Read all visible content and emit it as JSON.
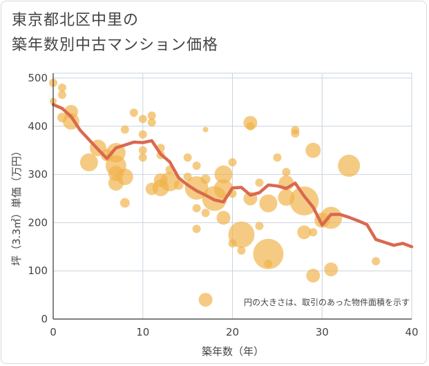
{
  "title_line1": "東京都北区中里の",
  "title_line2": "築年数別中古マンション価格",
  "chart_data": {
    "type": "scatter",
    "xlabel": "築年数（年）",
    "ylabel": "坪（3.3㎡）単価（万円）",
    "xlim": [
      0,
      40
    ],
    "ylim": [
      0,
      510
    ],
    "xticks": [
      0,
      10,
      20,
      30,
      40
    ],
    "yticks": [
      0,
      100,
      200,
      300,
      400,
      500
    ],
    "grid": true,
    "annotation": "円の大きさは、取引のあった物件面積を示す",
    "colors": {
      "bubble": "#f0b24a",
      "line": "#d9694f"
    },
    "series": [
      {
        "type": "bubble",
        "points": [
          {
            "x": 0,
            "y": 490,
            "r": 6
          },
          {
            "x": 0,
            "y": 452,
            "r": 5
          },
          {
            "x": 1,
            "y": 480,
            "r": 6
          },
          {
            "x": 1,
            "y": 465,
            "r": 6
          },
          {
            "x": 1,
            "y": 418,
            "r": 7
          },
          {
            "x": 2,
            "y": 430,
            "r": 10
          },
          {
            "x": 2,
            "y": 410,
            "r": 12
          },
          {
            "x": 4,
            "y": 325,
            "r": 13
          },
          {
            "x": 5,
            "y": 355,
            "r": 12
          },
          {
            "x": 6,
            "y": 340,
            "r": 9
          },
          {
            "x": 7,
            "y": 345,
            "r": 14
          },
          {
            "x": 7,
            "y": 318,
            "r": 15
          },
          {
            "x": 7,
            "y": 302,
            "r": 11
          },
          {
            "x": 7,
            "y": 282,
            "r": 11
          },
          {
            "x": 8,
            "y": 295,
            "r": 12
          },
          {
            "x": 8,
            "y": 393,
            "r": 6
          },
          {
            "x": 8,
            "y": 241,
            "r": 7
          },
          {
            "x": 9,
            "y": 428,
            "r": 6
          },
          {
            "x": 10,
            "y": 415,
            "r": 6
          },
          {
            "x": 10,
            "y": 383,
            "r": 6
          },
          {
            "x": 10,
            "y": 350,
            "r": 6
          },
          {
            "x": 10,
            "y": 335,
            "r": 6
          },
          {
            "x": 11,
            "y": 422,
            "r": 6
          },
          {
            "x": 11,
            "y": 408,
            "r": 6
          },
          {
            "x": 11,
            "y": 270,
            "r": 9
          },
          {
            "x": 12,
            "y": 355,
            "r": 6
          },
          {
            "x": 12,
            "y": 340,
            "r": 6
          },
          {
            "x": 12,
            "y": 288,
            "r": 10
          },
          {
            "x": 12,
            "y": 272,
            "r": 12
          },
          {
            "x": 13,
            "y": 310,
            "r": 6
          },
          {
            "x": 13,
            "y": 285,
            "r": 14
          },
          {
            "x": 14,
            "y": 278,
            "r": 7
          },
          {
            "x": 15,
            "y": 335,
            "r": 6
          },
          {
            "x": 15,
            "y": 295,
            "r": 6
          },
          {
            "x": 16,
            "y": 318,
            "r": 6
          },
          {
            "x": 16,
            "y": 272,
            "r": 17
          },
          {
            "x": 16,
            "y": 230,
            "r": 6
          },
          {
            "x": 17,
            "y": 393,
            "r": 4
          },
          {
            "x": 17,
            "y": 290,
            "r": 7
          },
          {
            "x": 17,
            "y": 220,
            "r": 6
          },
          {
            "x": 16,
            "y": 187,
            "r": 6
          },
          {
            "x": 18,
            "y": 250,
            "r": 18
          },
          {
            "x": 19,
            "y": 300,
            "r": 13
          },
          {
            "x": 19,
            "y": 270,
            "r": 14
          },
          {
            "x": 19,
            "y": 210,
            "r": 10
          },
          {
            "x": 20,
            "y": 325,
            "r": 6
          },
          {
            "x": 20,
            "y": 260,
            "r": 6
          },
          {
            "x": 20,
            "y": 157,
            "r": 6
          },
          {
            "x": 21,
            "y": 175,
            "r": 19
          },
          {
            "x": 21,
            "y": 142,
            "r": 6
          },
          {
            "x": 22,
            "y": 407,
            "r": 10
          },
          {
            "x": 22,
            "y": 400,
            "r": 6
          },
          {
            "x": 22,
            "y": 250,
            "r": 10
          },
          {
            "x": 23,
            "y": 283,
            "r": 6
          },
          {
            "x": 23,
            "y": 193,
            "r": 6
          },
          {
            "x": 24,
            "y": 240,
            "r": 13
          },
          {
            "x": 24,
            "y": 135,
            "r": 22
          },
          {
            "x": 24,
            "y": 115,
            "r": 6
          },
          {
            "x": 25,
            "y": 335,
            "r": 6
          },
          {
            "x": 26,
            "y": 305,
            "r": 6
          },
          {
            "x": 26,
            "y": 282,
            "r": 11
          },
          {
            "x": 26,
            "y": 252,
            "r": 12
          },
          {
            "x": 27,
            "y": 392,
            "r": 6
          },
          {
            "x": 27,
            "y": 385,
            "r": 6
          },
          {
            "x": 28,
            "y": 245,
            "r": 21
          },
          {
            "x": 28,
            "y": 180,
            "r": 10
          },
          {
            "x": 29,
            "y": 350,
            "r": 11
          },
          {
            "x": 29,
            "y": 180,
            "r": 6
          },
          {
            "x": 29,
            "y": 90,
            "r": 10
          },
          {
            "x": 30,
            "y": 205,
            "r": 11
          },
          {
            "x": 31,
            "y": 210,
            "r": 16
          },
          {
            "x": 31,
            "y": 103,
            "r": 10
          },
          {
            "x": 33,
            "y": 318,
            "r": 16
          },
          {
            "x": 36,
            "y": 120,
            "r": 6
          },
          {
            "x": 17,
            "y": 40,
            "r": 10
          }
        ]
      },
      {
        "type": "line",
        "points": [
          [
            0,
            445
          ],
          [
            1,
            437
          ],
          [
            2,
            420
          ],
          [
            3,
            392
          ],
          [
            4,
            372
          ],
          [
            5,
            352
          ],
          [
            6,
            333
          ],
          [
            7,
            355
          ],
          [
            8,
            361
          ],
          [
            9,
            367
          ],
          [
            10,
            366
          ],
          [
            11,
            370
          ],
          [
            12,
            342
          ],
          [
            13,
            326
          ],
          [
            14,
            293
          ],
          [
            15,
            278
          ],
          [
            16,
            266
          ],
          [
            17,
            257
          ],
          [
            18,
            247
          ],
          [
            19,
            243
          ],
          [
            20,
            272
          ],
          [
            21,
            273
          ],
          [
            22,
            257
          ],
          [
            23,
            262
          ],
          [
            24,
            278
          ],
          [
            25,
            276
          ],
          [
            26,
            271
          ],
          [
            27,
            282
          ],
          [
            28,
            255
          ],
          [
            29,
            232
          ],
          [
            30,
            195
          ],
          [
            31,
            217
          ],
          [
            32,
            217
          ],
          [
            33,
            211
          ],
          [
            34,
            204
          ],
          [
            35,
            196
          ],
          [
            36,
            165
          ],
          [
            37,
            159
          ],
          [
            38,
            153
          ],
          [
            39,
            157
          ],
          [
            40,
            150
          ]
        ]
      }
    ]
  }
}
